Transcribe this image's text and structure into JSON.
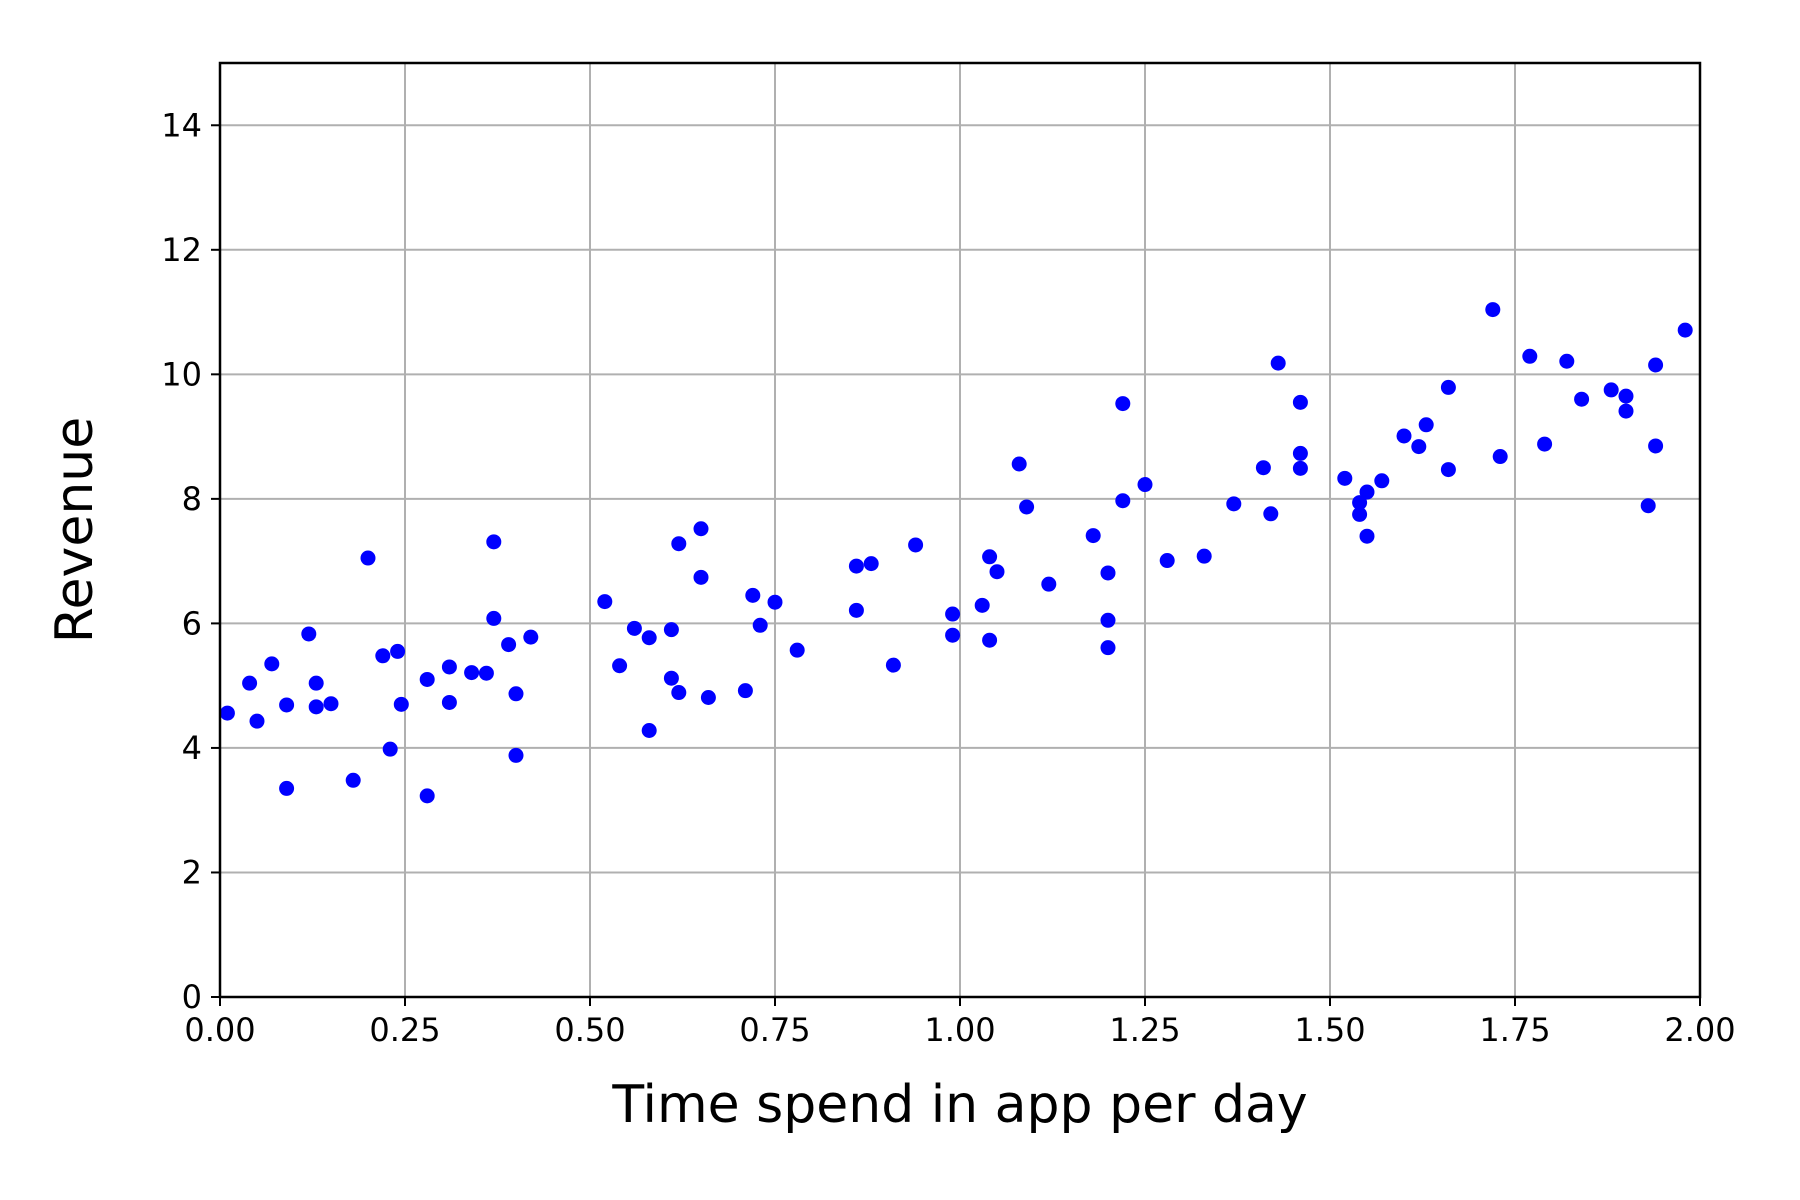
{
  "chart_data": {
    "type": "scatter",
    "title": "",
    "xlabel": "Time spend in app per day",
    "ylabel": "Revenue",
    "xlim": [
      0,
      2
    ],
    "ylim": [
      0,
      15
    ],
    "grid": true,
    "marker_color": "#0000ff",
    "x_ticks": [
      "0.00",
      "0.25",
      "0.50",
      "0.75",
      "1.00",
      "1.25",
      "1.50",
      "1.75",
      "2.00"
    ],
    "y_ticks": [
      "0",
      "2",
      "4",
      "6",
      "8",
      "10",
      "12",
      "14"
    ],
    "series": [
      {
        "points": [
          [
            0.01,
            4.56
          ],
          [
            0.04,
            5.04
          ],
          [
            0.05,
            4.43
          ],
          [
            0.07,
            5.35
          ],
          [
            0.09,
            4.69
          ],
          [
            0.09,
            3.35
          ],
          [
            0.12,
            5.83
          ],
          [
            0.13,
            5.04
          ],
          [
            0.13,
            4.66
          ],
          [
            0.15,
            4.71
          ],
          [
            0.18,
            3.48
          ],
          [
            0.2,
            7.05
          ],
          [
            0.22,
            5.48
          ],
          [
            0.23,
            3.98
          ],
          [
            0.24,
            5.55
          ],
          [
            0.245,
            4.7
          ],
          [
            0.28,
            5.1
          ],
          [
            0.28,
            3.23
          ],
          [
            0.31,
            5.3
          ],
          [
            0.31,
            4.73
          ],
          [
            0.34,
            5.21
          ],
          [
            0.36,
            5.2
          ],
          [
            0.37,
            7.31
          ],
          [
            0.37,
            6.08
          ],
          [
            0.39,
            5.66
          ],
          [
            0.4,
            4.87
          ],
          [
            0.4,
            3.88
          ],
          [
            0.42,
            5.78
          ],
          [
            0.52,
            6.35
          ],
          [
            0.54,
            5.32
          ],
          [
            0.56,
            5.92
          ],
          [
            0.58,
            5.77
          ],
          [
            0.58,
            4.28
          ],
          [
            0.61,
            5.9
          ],
          [
            0.61,
            5.12
          ],
          [
            0.62,
            4.89
          ],
          [
            0.62,
            7.28
          ],
          [
            0.65,
            7.52
          ],
          [
            0.65,
            6.74
          ],
          [
            0.66,
            4.81
          ],
          [
            0.71,
            4.92
          ],
          [
            0.72,
            6.45
          ],
          [
            0.73,
            5.97
          ],
          [
            0.75,
            6.34
          ],
          [
            0.78,
            5.57
          ],
          [
            0.86,
            6.92
          ],
          [
            0.86,
            6.21
          ],
          [
            0.88,
            6.96
          ],
          [
            0.91,
            5.33
          ],
          [
            0.94,
            7.26
          ],
          [
            0.99,
            6.15
          ],
          [
            0.99,
            5.81
          ],
          [
            1.03,
            6.29
          ],
          [
            1.04,
            5.73
          ],
          [
            1.04,
            7.07
          ],
          [
            1.05,
            6.83
          ],
          [
            1.08,
            8.56
          ],
          [
            1.09,
            7.87
          ],
          [
            1.12,
            6.63
          ],
          [
            1.18,
            7.41
          ],
          [
            1.2,
            6.05
          ],
          [
            1.2,
            5.61
          ],
          [
            1.2,
            6.81
          ],
          [
            1.22,
            9.53
          ],
          [
            1.22,
            7.97
          ],
          [
            1.25,
            8.23
          ],
          [
            1.28,
            7.01
          ],
          [
            1.33,
            7.08
          ],
          [
            1.37,
            7.92
          ],
          [
            1.41,
            8.5
          ],
          [
            1.42,
            7.76
          ],
          [
            1.43,
            10.18
          ],
          [
            1.46,
            9.55
          ],
          [
            1.46,
            8.73
          ],
          [
            1.46,
            8.49
          ],
          [
            1.52,
            8.33
          ],
          [
            1.54,
            7.75
          ],
          [
            1.54,
            7.94
          ],
          [
            1.55,
            7.4
          ],
          [
            1.55,
            8.11
          ],
          [
            1.57,
            8.29
          ],
          [
            1.6,
            9.01
          ],
          [
            1.62,
            8.84
          ],
          [
            1.63,
            9.19
          ],
          [
            1.66,
            9.79
          ],
          [
            1.66,
            8.47
          ],
          [
            1.72,
            11.04
          ],
          [
            1.73,
            8.68
          ],
          [
            1.77,
            10.29
          ],
          [
            1.79,
            8.88
          ],
          [
            1.82,
            10.21
          ],
          [
            1.84,
            9.6
          ],
          [
            1.88,
            9.75
          ],
          [
            1.9,
            9.65
          ],
          [
            1.9,
            9.41
          ],
          [
            1.93,
            7.89
          ],
          [
            1.94,
            10.15
          ],
          [
            1.94,
            8.85
          ],
          [
            1.98,
            10.71
          ]
        ]
      }
    ]
  }
}
